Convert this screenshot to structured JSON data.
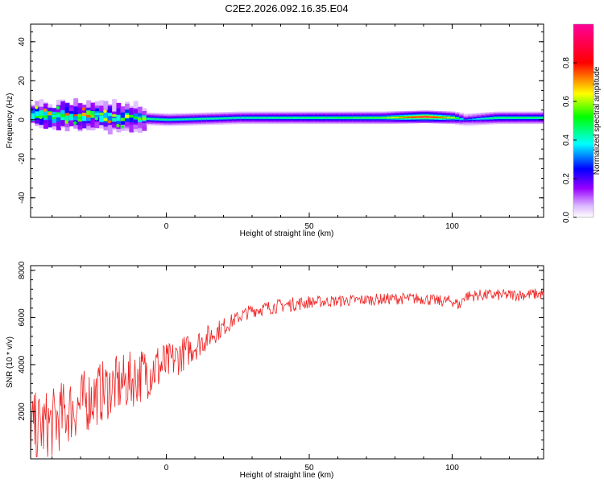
{
  "figure": {
    "title": "C2E2.2026.092.16.35.E04"
  },
  "chart_data": [
    {
      "type": "heatmap",
      "title": "C2E2.2026.092.16.35.E04",
      "xlabel": "Height of straight line (km)",
      "ylabel": "Frequency (Hz)",
      "xlim": [
        -47.5,
        132
      ],
      "ylim": [
        -50,
        49
      ],
      "xticks": [
        0,
        50,
        100
      ],
      "yticks": [
        -40,
        -20,
        0,
        20,
        40
      ],
      "xtick_labels": [
        "0",
        "50",
        "100"
      ],
      "ytick_labels": [
        "-40",
        "-20",
        "0",
        "20",
        "40"
      ],
      "colorbar": {
        "label": "Normalized spectral amplitude",
        "range": [
          0,
          1
        ],
        "ticks": [
          0.0,
          0.2,
          0.4,
          0.6,
          0.8
        ],
        "tick_labels": [
          "0.0",
          "0.2",
          "0.4",
          "0.6",
          "0.8"
        ],
        "colors": [
          "#ffffff",
          "#9900ff",
          "#0000ff",
          "#00ffff",
          "#00ff00",
          "#ffff00",
          "#ff0000",
          "#ff00aa"
        ]
      },
      "series": [
        {
          "name": "band center (Hz)",
          "x": [
            -45,
            -30,
            -15,
            0,
            25,
            50,
            75,
            90,
            100,
            104,
            115,
            132
          ],
          "values": [
            2,
            2,
            1,
            0,
            1,
            1,
            1,
            1.5,
            1,
            0,
            1,
            1
          ]
        },
        {
          "name": "peak amplitude",
          "x": [
            -45,
            -30,
            -15,
            0,
            25,
            50,
            75,
            90,
            100,
            104,
            115,
            132
          ],
          "values": [
            0.55,
            0.6,
            0.5,
            0.45,
            0.45,
            0.5,
            0.55,
            0.9,
            0.6,
            0.3,
            0.5,
            0.5
          ]
        }
      ]
    },
    {
      "type": "line",
      "xlabel": "Height of straight line (km)",
      "ylabel": "SNR (10 * v/v)",
      "xlim": [
        -47.5,
        132
      ],
      "ylim": [
        0,
        8200
      ],
      "xticks": [
        0,
        50,
        100
      ],
      "yticks": [
        2000,
        4000,
        6000,
        8000
      ],
      "xtick_labels": [
        "0",
        "50",
        "100"
      ],
      "ytick_labels": [
        "2000",
        "4000",
        "6000",
        "8000"
      ],
      "series": [
        {
          "name": "SNR",
          "color": "#ee2222",
          "x": [
            -47.5,
            -40,
            -35,
            -30,
            -25,
            -20,
            -15,
            -10,
            -5,
            0,
            5,
            10,
            15,
            20,
            25,
            30,
            40,
            50,
            60,
            70,
            80,
            90,
            95,
            100,
            103,
            104,
            110,
            120,
            132
          ],
          "values": [
            1200,
            1500,
            2000,
            2300,
            2700,
            3000,
            3200,
            3500,
            3800,
            4000,
            4400,
            4800,
            5200,
            5600,
            6000,
            6300,
            6500,
            6650,
            6700,
            6750,
            6800,
            6800,
            6700,
            6700,
            6500,
            6900,
            6950,
            6950,
            7000
          ]
        }
      ]
    }
  ]
}
